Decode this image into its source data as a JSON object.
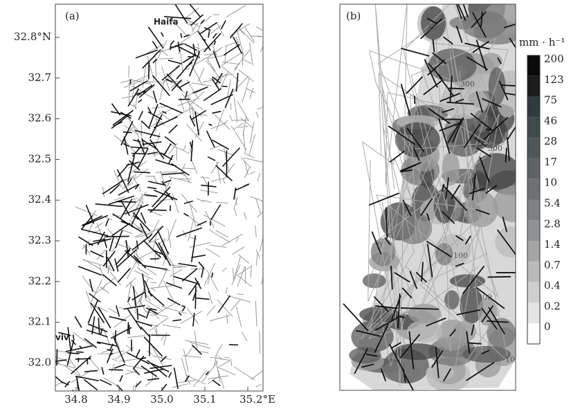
{
  "panel_a": {
    "label": "(a)",
    "city_labels": [
      "Haifa",
      "viv"
    ],
    "y_ticks": [
      "32.8°N",
      "32.7",
      "32.6",
      "32.5",
      "32.4",
      "32.3",
      "32.2",
      "32.1",
      "32.0"
    ],
    "x_ticks": [
      "34.8",
      "34.9",
      "35.0",
      "35.1",
      "35.2°E"
    ]
  },
  "panel_b": {
    "label": "(b)",
    "colorbar": {
      "unit": "mm · h⁻¹",
      "levels": [
        "200",
        "123",
        "75",
        "46",
        "28",
        "17",
        "10",
        "5.4",
        "2.8",
        "1.4",
        "0.7",
        "0.4",
        "0.2",
        "0"
      ]
    },
    "contour_labels": [
      "10",
      "300",
      "100",
      "10",
      "100",
      "300",
      "0",
      "100",
      "300",
      "10"
    ]
  }
}
